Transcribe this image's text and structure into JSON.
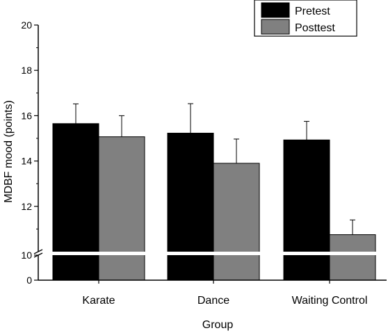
{
  "chart_data": {
    "type": "bar",
    "title": "",
    "xlabel": "Group",
    "ylabel": "MDBF mood (points)",
    "categories": [
      "Karate",
      "Dance",
      "Waiting Control"
    ],
    "series": [
      {
        "name": "Pretest",
        "values": [
          15.65,
          15.23,
          14.93
        ],
        "errors": [
          0.87,
          1.3,
          0.82
        ],
        "color": "#000000"
      },
      {
        "name": "Posttest",
        "values": [
          15.07,
          13.9,
          10.75
        ],
        "errors": [
          0.93,
          1.07,
          0.65
        ],
        "color": "#808080"
      }
    ],
    "ylim": [
      0,
      20
    ],
    "axis_break": [
      0,
      10
    ],
    "y_ticks": [
      "0",
      "10",
      "12",
      "14",
      "16",
      "18",
      "20"
    ],
    "legend_position": "top-right",
    "grid": false
  }
}
